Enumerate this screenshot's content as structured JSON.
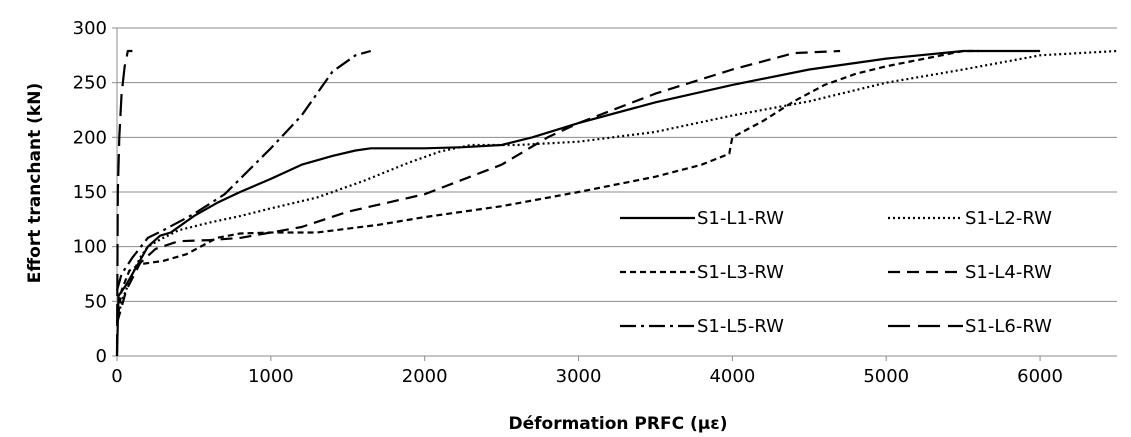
{
  "chart_data": {
    "type": "line",
    "xlabel": "Déformation PRFC (με)",
    "ylabel": "Effort tranchant (kN)",
    "xlim": [
      0,
      6500
    ],
    "ylim": [
      0,
      300
    ],
    "xticks": [
      0,
      1000,
      2000,
      3000,
      4000,
      5000,
      6000
    ],
    "yticks": [
      0,
      50,
      100,
      150,
      200,
      250,
      300
    ],
    "grid": "horizontal",
    "legend": "lower-right, 3 rows × 2 columns",
    "series": [
      {
        "name": "S1-L1-RW",
        "dash": "solid",
        "points": [
          [
            0,
            0
          ],
          [
            10,
            55
          ],
          [
            60,
            65
          ],
          [
            120,
            80
          ],
          [
            200,
            100
          ],
          [
            280,
            110
          ],
          [
            350,
            113
          ],
          [
            420,
            120
          ],
          [
            500,
            128
          ],
          [
            650,
            140
          ],
          [
            800,
            150
          ],
          [
            1000,
            162
          ],
          [
            1200,
            175
          ],
          [
            1400,
            183
          ],
          [
            1550,
            188
          ],
          [
            1650,
            190
          ],
          [
            1800,
            190
          ],
          [
            2000,
            190
          ],
          [
            2250,
            191
          ],
          [
            2500,
            193
          ],
          [
            2700,
            200
          ],
          [
            3000,
            213
          ],
          [
            3500,
            232
          ],
          [
            4000,
            248
          ],
          [
            4500,
            262
          ],
          [
            5000,
            272
          ],
          [
            5500,
            279
          ],
          [
            6000,
            279
          ]
        ]
      },
      {
        "name": "S1-L2-RW",
        "dash": "dotted",
        "points": [
          [
            0,
            30
          ],
          [
            30,
            50
          ],
          [
            100,
            75
          ],
          [
            150,
            90
          ],
          [
            200,
            100
          ],
          [
            300,
            108
          ],
          [
            400,
            115
          ],
          [
            600,
            122
          ],
          [
            800,
            128
          ],
          [
            1000,
            135
          ],
          [
            1300,
            145
          ],
          [
            1600,
            160
          ],
          [
            1900,
            177
          ],
          [
            2100,
            187
          ],
          [
            2300,
            193
          ],
          [
            2600,
            193
          ],
          [
            3000,
            196
          ],
          [
            3500,
            205
          ],
          [
            4000,
            220
          ],
          [
            4500,
            233
          ],
          [
            5000,
            250
          ],
          [
            5500,
            262
          ],
          [
            6000,
            275
          ],
          [
            6500,
            279
          ]
        ]
      },
      {
        "name": "S1-L3-RW",
        "dash": "short-dash",
        "points": [
          [
            0,
            30
          ],
          [
            30,
            60
          ],
          [
            80,
            78
          ],
          [
            150,
            84
          ],
          [
            300,
            87
          ],
          [
            450,
            93
          ],
          [
            650,
            108
          ],
          [
            800,
            112
          ],
          [
            1000,
            113
          ],
          [
            1300,
            113
          ],
          [
            1700,
            120
          ],
          [
            2000,
            127
          ],
          [
            2500,
            137
          ],
          [
            3000,
            150
          ],
          [
            3500,
            164
          ],
          [
            3800,
            175
          ],
          [
            3980,
            185
          ],
          [
            3990,
            193
          ],
          [
            4000,
            200
          ],
          [
            4200,
            215
          ],
          [
            4400,
            233
          ],
          [
            4600,
            248
          ],
          [
            4800,
            258
          ],
          [
            5000,
            265
          ],
          [
            5500,
            279
          ],
          [
            5600,
            279
          ]
        ]
      },
      {
        "name": "S1-L4-RW",
        "dash": "dash",
        "points": [
          [
            0,
            30
          ],
          [
            60,
            60
          ],
          [
            150,
            85
          ],
          [
            250,
            98
          ],
          [
            400,
            105
          ],
          [
            600,
            106
          ],
          [
            800,
            108
          ],
          [
            1000,
            113
          ],
          [
            1200,
            118
          ],
          [
            1500,
            132
          ],
          [
            2000,
            148
          ],
          [
            2500,
            175
          ],
          [
            2800,
            200
          ],
          [
            3000,
            213
          ],
          [
            3500,
            240
          ],
          [
            4000,
            262
          ],
          [
            4400,
            277
          ],
          [
            4700,
            279
          ]
        ]
      },
      {
        "name": "S1-L5-RW",
        "dash": "dash-dot",
        "points": [
          [
            0,
            60
          ],
          [
            30,
            75
          ],
          [
            100,
            90
          ],
          [
            200,
            108
          ],
          [
            300,
            115
          ],
          [
            500,
            130
          ],
          [
            700,
            148
          ],
          [
            1000,
            190
          ],
          [
            1200,
            220
          ],
          [
            1400,
            260
          ],
          [
            1550,
            275
          ],
          [
            1650,
            279
          ]
        ]
      },
      {
        "name": "S1-L6-RW",
        "dash": "long-dash",
        "points": [
          [
            0,
            0
          ],
          [
            5,
            150
          ],
          [
            15,
            200
          ],
          [
            30,
            240
          ],
          [
            50,
            265
          ],
          [
            65,
            275
          ],
          [
            70,
            279
          ],
          [
            100,
            279
          ]
        ]
      }
    ]
  }
}
